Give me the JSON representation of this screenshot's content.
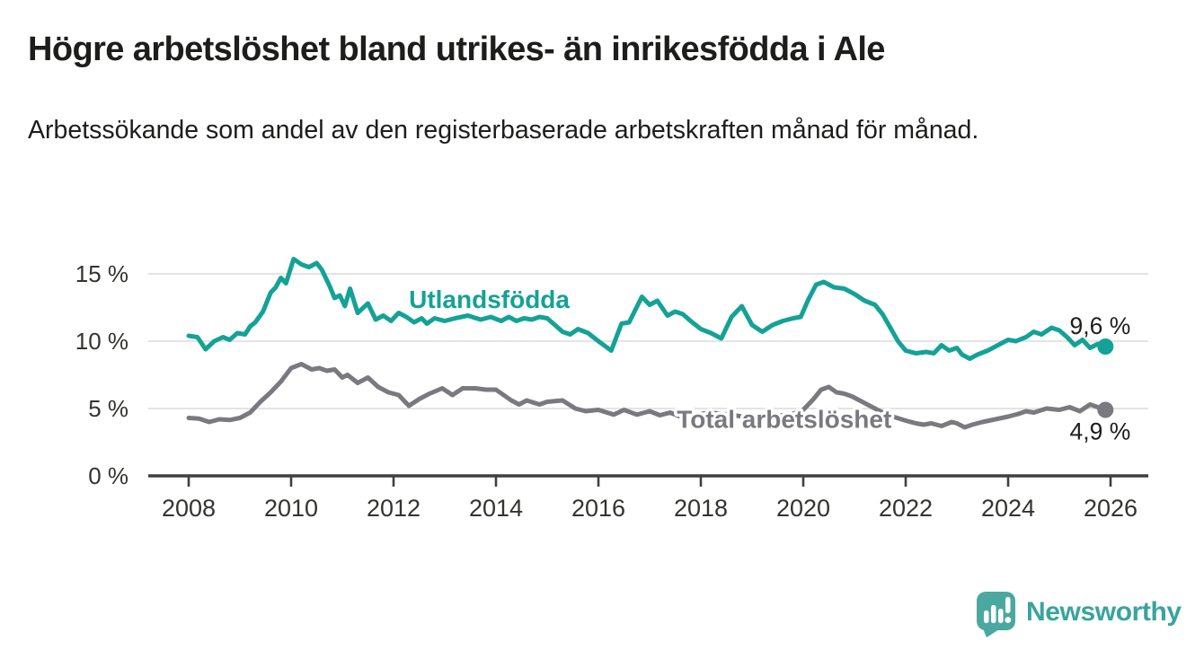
{
  "header": {
    "title": "Högre arbetslöshet bland utrikes- än inrikesfödda i Ale",
    "subtitle": "Arbetssökande som andel av den registerbaserade arbetskraften månad för månad."
  },
  "branding": {
    "wordmark": "Newsworthy"
  },
  "colors": {
    "utlandsfodda": "#14a296",
    "total": "#7a7980",
    "gridline": "#dcdcdc",
    "axis": "#3f3f3f",
    "tick_text": "#333330",
    "logo": "#4ba8a1"
  },
  "chart_data": {
    "type": "line",
    "title": "Högre arbetslöshet bland utrikes- än inrikesfödda i Ale",
    "xlabel": "",
    "ylabel": "",
    "unit": "%",
    "grid": true,
    "x_axis": {
      "min": 2007.2,
      "max": 2026.75,
      "ticks": [
        2008,
        2010,
        2012,
        2014,
        2016,
        2018,
        2020,
        2022,
        2024,
        2026
      ],
      "tick_labels": [
        "2008",
        "2010",
        "2012",
        "2014",
        "2016",
        "2018",
        "2020",
        "2022",
        "2024",
        "2026"
      ]
    },
    "y_axis": {
      "min": 0,
      "max": 16.3,
      "ticks": [
        {
          "value": 0,
          "label": "0 %"
        },
        {
          "value": 5,
          "label": "5 %"
        },
        {
          "value": 10,
          "label": "10 %"
        },
        {
          "value": 15,
          "label": "15 %"
        }
      ]
    },
    "series": [
      {
        "id": "utlandsfodda",
        "name": "Utlandsfödda",
        "color": "#14a296",
        "end_label": "9,6 %",
        "end_value": 9.6,
        "label_anchor": {
          "x": 2012.3,
          "y": 13.15
        },
        "end_label_offset": {
          "dx": 28,
          "dy": -14
        },
        "points": [
          [
            2008.0,
            10.4
          ],
          [
            2008.17,
            10.3
          ],
          [
            2008.33,
            9.4
          ],
          [
            2008.5,
            10.0
          ],
          [
            2008.67,
            10.3
          ],
          [
            2008.8,
            10.1
          ],
          [
            2008.95,
            10.6
          ],
          [
            2009.1,
            10.5
          ],
          [
            2009.2,
            11.1
          ],
          [
            2009.3,
            11.4
          ],
          [
            2009.45,
            12.2
          ],
          [
            2009.6,
            13.6
          ],
          [
            2009.7,
            14.0
          ],
          [
            2009.8,
            14.7
          ],
          [
            2009.9,
            14.3
          ],
          [
            2010.05,
            16.1
          ],
          [
            2010.2,
            15.7
          ],
          [
            2010.35,
            15.5
          ],
          [
            2010.5,
            15.8
          ],
          [
            2010.6,
            15.3
          ],
          [
            2010.75,
            14.1
          ],
          [
            2010.85,
            13.2
          ],
          [
            2010.95,
            13.4
          ],
          [
            2011.05,
            12.6
          ],
          [
            2011.15,
            13.9
          ],
          [
            2011.3,
            12.1
          ],
          [
            2011.5,
            12.8
          ],
          [
            2011.65,
            11.6
          ],
          [
            2011.8,
            11.9
          ],
          [
            2011.95,
            11.5
          ],
          [
            2012.1,
            12.1
          ],
          [
            2012.25,
            11.8
          ],
          [
            2012.4,
            11.4
          ],
          [
            2012.55,
            11.7
          ],
          [
            2012.65,
            11.3
          ],
          [
            2012.8,
            11.7
          ],
          [
            2013.0,
            11.5
          ],
          [
            2013.2,
            11.7
          ],
          [
            2013.45,
            11.9
          ],
          [
            2013.7,
            11.6
          ],
          [
            2013.9,
            11.8
          ],
          [
            2014.1,
            11.5
          ],
          [
            2014.25,
            11.8
          ],
          [
            2014.4,
            11.5
          ],
          [
            2014.55,
            11.7
          ],
          [
            2014.7,
            11.6
          ],
          [
            2014.85,
            11.8
          ],
          [
            2015.0,
            11.7
          ],
          [
            2015.15,
            11.2
          ],
          [
            2015.3,
            10.7
          ],
          [
            2015.45,
            10.5
          ],
          [
            2015.6,
            10.9
          ],
          [
            2015.8,
            10.6
          ],
          [
            2016.0,
            10.0
          ],
          [
            2016.25,
            9.3
          ],
          [
            2016.45,
            11.3
          ],
          [
            2016.6,
            11.4
          ],
          [
            2016.85,
            13.3
          ],
          [
            2017.0,
            12.7
          ],
          [
            2017.15,
            13.0
          ],
          [
            2017.35,
            11.9
          ],
          [
            2017.5,
            12.2
          ],
          [
            2017.65,
            12.0
          ],
          [
            2017.8,
            11.5
          ],
          [
            2018.0,
            10.9
          ],
          [
            2018.2,
            10.6
          ],
          [
            2018.4,
            10.2
          ],
          [
            2018.6,
            11.8
          ],
          [
            2018.8,
            12.6
          ],
          [
            2019.0,
            11.2
          ],
          [
            2019.2,
            10.7
          ],
          [
            2019.4,
            11.2
          ],
          [
            2019.6,
            11.5
          ],
          [
            2019.8,
            11.7
          ],
          [
            2019.95,
            11.8
          ],
          [
            2020.1,
            13.1
          ],
          [
            2020.25,
            14.2
          ],
          [
            2020.4,
            14.4
          ],
          [
            2020.6,
            14.0
          ],
          [
            2020.8,
            13.9
          ],
          [
            2021.0,
            13.5
          ],
          [
            2021.2,
            13.0
          ],
          [
            2021.4,
            12.7
          ],
          [
            2021.55,
            12.0
          ],
          [
            2021.7,
            11.0
          ],
          [
            2021.85,
            10.0
          ],
          [
            2022.0,
            9.3
          ],
          [
            2022.2,
            9.1
          ],
          [
            2022.4,
            9.2
          ],
          [
            2022.55,
            9.1
          ],
          [
            2022.7,
            9.7
          ],
          [
            2022.85,
            9.3
          ],
          [
            2023.0,
            9.5
          ],
          [
            2023.1,
            9.0
          ],
          [
            2023.25,
            8.7
          ],
          [
            2023.4,
            9.0
          ],
          [
            2023.6,
            9.3
          ],
          [
            2023.85,
            9.8
          ],
          [
            2024.0,
            10.1
          ],
          [
            2024.15,
            10.0
          ],
          [
            2024.35,
            10.3
          ],
          [
            2024.5,
            10.7
          ],
          [
            2024.65,
            10.5
          ],
          [
            2024.85,
            11.0
          ],
          [
            2025.0,
            10.8
          ],
          [
            2025.15,
            10.3
          ],
          [
            2025.3,
            9.7
          ],
          [
            2025.45,
            10.1
          ],
          [
            2025.6,
            9.5
          ],
          [
            2025.75,
            9.8
          ],
          [
            2025.9,
            9.6
          ]
        ]
      },
      {
        "id": "total",
        "name": "Total arbetslöshet",
        "color": "#7a7980",
        "end_label": "4,9 %",
        "end_value": 4.9,
        "label_anchor": {
          "x": 2017.53,
          "y": 4.25
        },
        "end_label_offset": {
          "dx": 28,
          "dy": 33
        },
        "points": [
          [
            2008.0,
            4.3
          ],
          [
            2008.2,
            4.25
          ],
          [
            2008.4,
            4.0
          ],
          [
            2008.6,
            4.2
          ],
          [
            2008.8,
            4.15
          ],
          [
            2009.0,
            4.3
          ],
          [
            2009.2,
            4.7
          ],
          [
            2009.4,
            5.5
          ],
          [
            2009.6,
            6.2
          ],
          [
            2009.8,
            7.0
          ],
          [
            2010.0,
            8.0
          ],
          [
            2010.2,
            8.3
          ],
          [
            2010.4,
            7.9
          ],
          [
            2010.55,
            8.0
          ],
          [
            2010.7,
            7.8
          ],
          [
            2010.85,
            7.9
          ],
          [
            2011.0,
            7.3
          ],
          [
            2011.1,
            7.5
          ],
          [
            2011.3,
            6.9
          ],
          [
            2011.5,
            7.3
          ],
          [
            2011.7,
            6.6
          ],
          [
            2011.9,
            6.2
          ],
          [
            2012.1,
            6.0
          ],
          [
            2012.3,
            5.2
          ],
          [
            2012.5,
            5.7
          ],
          [
            2012.7,
            6.1
          ],
          [
            2012.95,
            6.5
          ],
          [
            2013.15,
            6.0
          ],
          [
            2013.35,
            6.5
          ],
          [
            2013.6,
            6.5
          ],
          [
            2013.8,
            6.4
          ],
          [
            2014.0,
            6.4
          ],
          [
            2014.3,
            5.6
          ],
          [
            2014.45,
            5.3
          ],
          [
            2014.6,
            5.6
          ],
          [
            2014.85,
            5.3
          ],
          [
            2015.0,
            5.5
          ],
          [
            2015.3,
            5.6
          ],
          [
            2015.55,
            5.0
          ],
          [
            2015.75,
            4.8
          ],
          [
            2016.0,
            4.9
          ],
          [
            2016.3,
            4.55
          ],
          [
            2016.5,
            4.9
          ],
          [
            2016.75,
            4.55
          ],
          [
            2017.0,
            4.8
          ],
          [
            2017.2,
            4.5
          ],
          [
            2017.4,
            4.7
          ],
          [
            2017.6,
            4.4
          ],
          [
            2017.8,
            4.2
          ],
          [
            2018.0,
            4.6
          ],
          [
            2018.2,
            4.7
          ],
          [
            2018.4,
            4.6
          ],
          [
            2018.6,
            4.55
          ],
          [
            2018.8,
            4.4
          ],
          [
            2019.0,
            4.5
          ],
          [
            2019.2,
            4.35
          ],
          [
            2019.4,
            4.5
          ],
          [
            2019.6,
            4.5
          ],
          [
            2019.8,
            4.6
          ],
          [
            2020.0,
            4.9
          ],
          [
            2020.2,
            5.7
          ],
          [
            2020.35,
            6.4
          ],
          [
            2020.5,
            6.6
          ],
          [
            2020.65,
            6.2
          ],
          [
            2020.8,
            6.1
          ],
          [
            2020.95,
            5.9
          ],
          [
            2021.2,
            5.4
          ],
          [
            2021.5,
            4.8
          ],
          [
            2021.75,
            4.4
          ],
          [
            2022.0,
            4.1
          ],
          [
            2022.2,
            3.9
          ],
          [
            2022.35,
            3.8
          ],
          [
            2022.5,
            3.9
          ],
          [
            2022.7,
            3.7
          ],
          [
            2022.9,
            4.0
          ],
          [
            2023.0,
            3.9
          ],
          [
            2023.15,
            3.6
          ],
          [
            2023.3,
            3.8
          ],
          [
            2023.5,
            4.0
          ],
          [
            2023.75,
            4.2
          ],
          [
            2024.0,
            4.4
          ],
          [
            2024.2,
            4.6
          ],
          [
            2024.35,
            4.8
          ],
          [
            2024.5,
            4.7
          ],
          [
            2024.75,
            5.0
          ],
          [
            2025.0,
            4.9
          ],
          [
            2025.2,
            5.1
          ],
          [
            2025.4,
            4.8
          ],
          [
            2025.6,
            5.3
          ],
          [
            2025.75,
            5.1
          ],
          [
            2025.9,
            4.9
          ]
        ]
      }
    ]
  }
}
